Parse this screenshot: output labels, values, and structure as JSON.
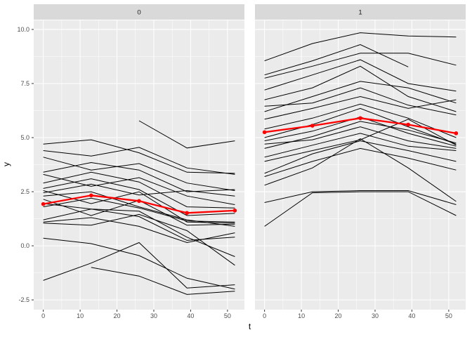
{
  "chart_data": {
    "type": "line",
    "title": "",
    "xlabel": "t",
    "ylabel": "y",
    "facet_variable_values": [
      "0",
      "1"
    ],
    "x_domain": [
      -2.6,
      54.6
    ],
    "y_domain": [
      -2.95,
      10.42
    ],
    "x_ticks": [
      0,
      10,
      20,
      30,
      40,
      50
    ],
    "x_tick_labels": [
      "0",
      "10",
      "20",
      "30",
      "40",
      "50"
    ],
    "x_minor_ticks": [
      5,
      15,
      25,
      35,
      45
    ],
    "y_ticks": [
      10.0,
      7.5,
      5.0,
      2.5,
      0.0,
      -2.5
    ],
    "y_tick_labels": [
      "10.0",
      "7.5",
      "5.0",
      "2.5",
      "0.0",
      "-2.5"
    ],
    "y_minor_ticks": [
      8.75,
      6.25,
      3.75,
      1.25,
      -1.25
    ],
    "measurement_times": [
      0,
      13,
      26,
      39,
      52
    ],
    "grid": true,
    "legend": "none",
    "colors": {
      "subject_line": "#000000",
      "mean_line": "#FF0000",
      "panel_bg": "#EBEBEB",
      "strip_bg": "#D9D9D9",
      "grid_line": "#FFFFFF",
      "tick_text": "#4D4D4D",
      "strip_text": "#1A1A1A",
      "tick_mark": "#333333"
    },
    "panels": [
      {
        "label": "0",
        "mean_line": {
          "t": [
            0,
            13,
            26,
            39,
            52
          ],
          "y": [
            1.93,
            2.33,
            2.07,
            1.52,
            1.63
          ]
        },
        "lines": [
          {
            "t": [
              0,
              13,
              26,
              39,
              52
            ],
            "y": [
              4.7,
              4.9,
              4.3,
              3.4,
              3.35
            ]
          },
          {
            "t": [
              0,
              13,
              26,
              39,
              52
            ],
            "y": [
              4.4,
              4.15,
              4.55,
              3.6,
              3.3
            ]
          },
          {
            "t": [
              0,
              13,
              26,
              39,
              52
            ],
            "y": [
              4.1,
              3.5,
              3.8,
              2.9,
              2.55
            ]
          },
          {
            "t": [
              0,
              13,
              26,
              39,
              52
            ],
            "y": [
              3.4,
              3.85,
              3.5,
              2.5,
              2.6
            ]
          },
          {
            "t": [
              0,
              13,
              26,
              39,
              52
            ],
            "y": [
              3.3,
              2.75,
              3.15,
              2.3,
              1.9
            ]
          },
          {
            "t": [
              0,
              13,
              26,
              39,
              52
            ],
            "y": [
              2.9,
              3.4,
              2.95,
              1.8,
              1.75
            ]
          },
          {
            "t": [
              0,
              13,
              26,
              39,
              52
            ],
            "y": [
              2.65,
              3.1,
              2.6,
              1.4,
              1.5
            ]
          },
          {
            "t": [
              0,
              13,
              26,
              39,
              52
            ],
            "y": [
              2.55,
              1.95,
              2.5,
              1.1,
              1.05
            ]
          },
          {
            "t": [
              0,
              13,
              26,
              39,
              52
            ],
            "y": [
              2.45,
              2.85,
              2.35,
              2.55,
              2.3
            ]
          },
          {
            "t": [
              0,
              13,
              26,
              39,
              52
            ],
            "y": [
              2.3,
              2.5,
              1.8,
              1.2,
              0.9
            ]
          },
          {
            "t": [
              0,
              13,
              26,
              39,
              52
            ],
            "y": [
              2.15,
              1.4,
              2.1,
              0.95,
              1.0
            ]
          },
          {
            "t": [
              0,
              13,
              26,
              39,
              52
            ],
            "y": [
              1.95,
              1.7,
              1.6,
              0.4,
              -0.5
            ]
          },
          {
            "t": [
              0,
              13,
              26,
              39,
              52
            ],
            "y": [
              1.8,
              2.2,
              1.75,
              1.15,
              1.1
            ]
          },
          {
            "t": [
              0,
              13,
              26,
              39,
              52
            ],
            "y": [
              1.2,
              1.7,
              1.35,
              0.25,
              0.4
            ]
          },
          {
            "t": [
              0,
              13,
              26,
              39,
              52
            ],
            "y": [
              1.1,
              1.3,
              0.9,
              0.15,
              0.6
            ]
          },
          {
            "t": [
              0,
              13,
              26,
              39,
              52
            ],
            "y": [
              1.05,
              0.95,
              1.45,
              0.7,
              -0.9
            ]
          },
          {
            "t": [
              0,
              13,
              26,
              39,
              52
            ],
            "y": [
              0.35,
              0.1,
              -0.45,
              -1.5,
              -2.0
            ]
          },
          {
            "t": [
              0,
              13,
              26,
              39,
              52
            ],
            "y": [
              -1.6,
              -0.8,
              0.15,
              -1.95,
              -1.8
            ]
          },
          {
            "t": [
              13,
              26,
              39,
              52
            ],
            "y": [
              -1.0,
              -1.4,
              -2.25,
              -2.1
            ]
          },
          {
            "t": [
              26,
              39,
              52
            ],
            "y": [
              5.78,
              4.52,
              4.85
            ]
          }
        ]
      },
      {
        "label": "1",
        "mean_line": {
          "t": [
            0,
            13,
            26,
            39,
            52
          ],
          "y": [
            5.25,
            5.55,
            5.9,
            5.6,
            5.2
          ]
        },
        "lines": [
          {
            "t": [
              0,
              13,
              26,
              39,
              52
            ],
            "y": [
              8.55,
              9.35,
              9.85,
              9.7,
              9.65
            ]
          },
          {
            "t": [
              0,
              13,
              26,
              39
            ],
            "y": [
              7.9,
              8.55,
              9.3,
              8.27
            ]
          },
          {
            "t": [
              0,
              13,
              26,
              39,
              52
            ],
            "y": [
              7.75,
              8.3,
              8.9,
              8.9,
              8.35
            ]
          },
          {
            "t": [
              0,
              13,
              26,
              39,
              52
            ],
            "y": [
              7.2,
              7.9,
              8.6,
              7.5,
              7.15
            ]
          },
          {
            "t": [
              0,
              13,
              26,
              39,
              52
            ],
            "y": [
              6.75,
              7.3,
              8.3,
              6.9,
              6.2
            ]
          },
          {
            "t": [
              0,
              13,
              26,
              39,
              52
            ],
            "y": [
              6.45,
              6.6,
              7.3,
              6.5,
              6.05
            ]
          },
          {
            "t": [
              0,
              13,
              26,
              39,
              52
            ],
            "y": [
              6.2,
              6.9,
              7.6,
              7.3,
              6.6
            ]
          },
          {
            "t": [
              0,
              13,
              26,
              39,
              52
            ],
            "y": [
              5.85,
              6.35,
              6.9,
              6.35,
              6.75
            ]
          },
          {
            "t": [
              0,
              13,
              26,
              39,
              52
            ],
            "y": [
              5.4,
              5.9,
              6.55,
              5.9,
              5.0
            ]
          },
          {
            "t": [
              0,
              13,
              26,
              39,
              52
            ],
            "y": [
              5.0,
              5.6,
              6.35,
              5.5,
              4.7
            ]
          },
          {
            "t": [
              0,
              13,
              26,
              39,
              52
            ],
            "y": [
              4.85,
              5.3,
              5.95,
              5.2,
              4.6
            ]
          },
          {
            "t": [
              0,
              13,
              26,
              39,
              52
            ],
            "y": [
              4.7,
              4.9,
              5.5,
              4.85,
              4.5
            ]
          },
          {
            "t": [
              0,
              13,
              26,
              39,
              52
            ],
            "y": [
              4.5,
              5.05,
              5.75,
              5.35,
              4.75
            ]
          },
          {
            "t": [
              0,
              13,
              26,
              39,
              52
            ],
            "y": [
              4.1,
              4.65,
              5.2,
              4.6,
              4.4
            ]
          },
          {
            "t": [
              0,
              13,
              26,
              39,
              52
            ],
            "y": [
              3.9,
              4.4,
              4.9,
              5.85,
              4.65
            ]
          },
          {
            "t": [
              0,
              13,
              26,
              39,
              52
            ],
            "y": [
              3.35,
              4.25,
              4.85,
              4.4,
              3.9
            ]
          },
          {
            "t": [
              0,
              13,
              26,
              39,
              52
            ],
            "y": [
              3.2,
              3.9,
              4.5,
              4.05,
              3.5
            ]
          },
          {
            "t": [
              0,
              13,
              26,
              39,
              52
            ],
            "y": [
              2.8,
              3.6,
              4.95,
              3.6,
              2.05
            ]
          },
          {
            "t": [
              0,
              13,
              26,
              39,
              52
            ],
            "y": [
              2.0,
              2.5,
              2.55,
              2.55,
              1.9
            ]
          },
          {
            "t": [
              0,
              13,
              26,
              39,
              52
            ],
            "y": [
              0.9,
              2.45,
              2.5,
              2.5,
              1.4
            ]
          }
        ]
      }
    ]
  }
}
